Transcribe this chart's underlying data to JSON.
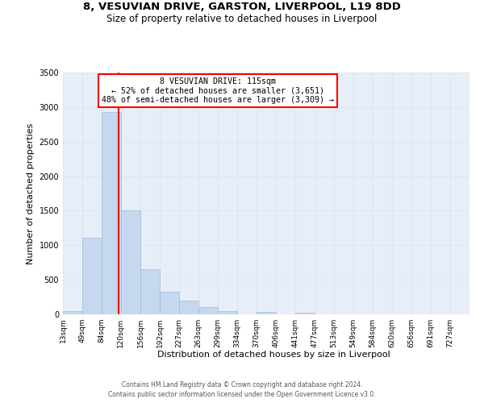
{
  "title": "8, VESUVIAN DRIVE, GARSTON, LIVERPOOL, L19 8DD",
  "subtitle": "Size of property relative to detached houses in Liverpool",
  "xlabel": "Distribution of detached houses by size in Liverpool",
  "ylabel": "Number of detached properties",
  "bin_labels": [
    "13sqm",
    "49sqm",
    "84sqm",
    "120sqm",
    "156sqm",
    "192sqm",
    "227sqm",
    "263sqm",
    "299sqm",
    "334sqm",
    "370sqm",
    "406sqm",
    "441sqm",
    "477sqm",
    "513sqm",
    "549sqm",
    "584sqm",
    "620sqm",
    "656sqm",
    "691sqm",
    "727sqm"
  ],
  "bin_edges": [
    13,
    49,
    84,
    120,
    156,
    192,
    227,
    263,
    299,
    334,
    370,
    406,
    441,
    477,
    513,
    549,
    584,
    620,
    656,
    691,
    727,
    763
  ],
  "bar_heights": [
    50,
    1110,
    2930,
    1510,
    650,
    330,
    200,
    110,
    50,
    0,
    40,
    0,
    20,
    0,
    0,
    0,
    0,
    0,
    0,
    0,
    0
  ],
  "bar_color": "#c5d8f0",
  "bar_edgecolor": "#a0bcd8",
  "vline_x": 115,
  "vline_color": "red",
  "ylim": [
    0,
    3500
  ],
  "yticks": [
    0,
    500,
    1000,
    1500,
    2000,
    2500,
    3000,
    3500
  ],
  "annotation_title": "8 VESUVIAN DRIVE: 115sqm",
  "annotation_line1": "← 52% of detached houses are smaller (3,651)",
  "annotation_line2": "48% of semi-detached houses are larger (3,309) →",
  "annotation_box_color": "red",
  "footer_line1": "Contains HM Land Registry data © Crown copyright and database right 2024.",
  "footer_line2": "Contains public sector information licensed under the Open Government Licence v3.0.",
  "grid_color": "#dde6f0",
  "background_color": "#e8eef8",
  "plot_background": "#ffffff"
}
